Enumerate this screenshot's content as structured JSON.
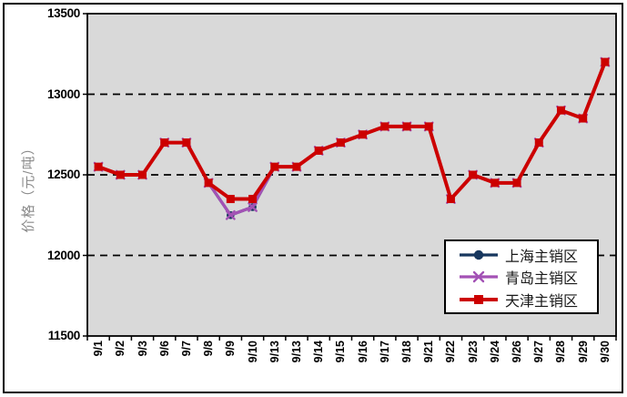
{
  "chart_data": {
    "type": "line",
    "title": "",
    "ylabel": "价格（元/吨）",
    "xlabel": "",
    "categories": [
      "9/1",
      "9/2",
      "9/3",
      "9/6",
      "9/7",
      "9/8",
      "9/9",
      "9/10",
      "9/13",
      "9/13",
      "9/14",
      "9/15",
      "9/16",
      "9/17",
      "9/18",
      "9/21",
      "9/22",
      "9/23",
      "9/24",
      "9/26",
      "9/27",
      "9/28",
      "9/29",
      "9/30"
    ],
    "ylim": [
      11500,
      13500
    ],
    "yticks": [
      13500,
      13000,
      12500,
      12000,
      11500
    ],
    "gridlines": [
      13000,
      12500,
      12000
    ],
    "grid_style": "horizontal-dashed-black",
    "plot_bg": "#D9D9D9",
    "axis_color": "#000000",
    "ytitle_color": "#8A8A8A",
    "legend_position": "inside-right",
    "series": [
      {
        "name": "上海主销区",
        "color": "#17375E",
        "marker": "circle",
        "values": [
          12550,
          12500,
          12500,
          12700,
          12700,
          12450,
          12250,
          12300,
          12550,
          12550,
          12650,
          12700,
          12750,
          12800,
          12800,
          12800,
          12350,
          12500,
          12450,
          12450,
          12700,
          12900,
          12850,
          13200
        ]
      },
      {
        "name": "青岛主销区",
        "color": "#A352B5",
        "marker": "x",
        "values": [
          12550,
          12500,
          12500,
          12700,
          12700,
          12450,
          12250,
          12300,
          12550,
          12550,
          12650,
          12700,
          12750,
          12800,
          12800,
          12800,
          12350,
          12500,
          12450,
          12450,
          12700,
          12900,
          12850,
          13200
        ]
      },
      {
        "name": "天津主销区",
        "color": "#CC0000",
        "marker": "square",
        "values": [
          12550,
          12500,
          12500,
          12700,
          12700,
          12450,
          12350,
          12350,
          12550,
          12550,
          12650,
          12700,
          12750,
          12800,
          12800,
          12800,
          12350,
          12500,
          12450,
          12450,
          12700,
          12900,
          12850,
          13200
        ]
      }
    ]
  }
}
